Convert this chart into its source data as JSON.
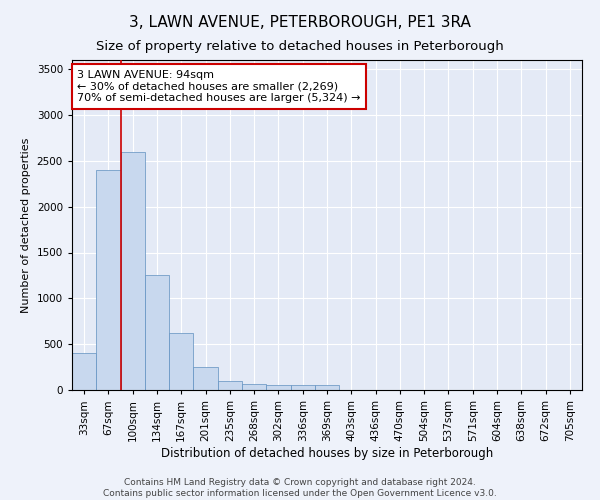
{
  "title": "3, LAWN AVENUE, PETERBOROUGH, PE1 3RA",
  "subtitle": "Size of property relative to detached houses in Peterborough",
  "xlabel": "Distribution of detached houses by size in Peterborough",
  "ylabel": "Number of detached properties",
  "footer_line1": "Contains HM Land Registry data © Crown copyright and database right 2024.",
  "footer_line2": "Contains public sector information licensed under the Open Government Licence v3.0.",
  "categories": [
    "33sqm",
    "67sqm",
    "100sqm",
    "134sqm",
    "167sqm",
    "201sqm",
    "235sqm",
    "268sqm",
    "302sqm",
    "336sqm",
    "369sqm",
    "403sqm",
    "436sqm",
    "470sqm",
    "504sqm",
    "537sqm",
    "571sqm",
    "604sqm",
    "638sqm",
    "672sqm",
    "705sqm"
  ],
  "values": [
    400,
    2400,
    2600,
    1250,
    620,
    250,
    100,
    70,
    60,
    55,
    50,
    0,
    0,
    0,
    0,
    0,
    0,
    0,
    0,
    0,
    0
  ],
  "bar_color": "#c8d8ee",
  "bar_edge_color": "#6090c0",
  "bar_edge_width": 0.5,
  "annotation_text_line1": "3 LAWN AVENUE: 94sqm",
  "annotation_text_line2": "← 30% of detached houses are smaller (2,269)",
  "annotation_text_line3": "70% of semi-detached houses are larger (5,324) →",
  "annotation_box_facecolor": "#ffffff",
  "annotation_box_edgecolor": "#cc0000",
  "redline_x": 1.5,
  "property_line_color": "#cc0000",
  "ylim": [
    0,
    3600
  ],
  "yticks": [
    0,
    500,
    1000,
    1500,
    2000,
    2500,
    3000,
    3500
  ],
  "background_color": "#eef2fa",
  "axes_bg_color": "#e4eaf6",
  "grid_color": "#ffffff",
  "title_fontsize": 11,
  "subtitle_fontsize": 9.5,
  "xlabel_fontsize": 8.5,
  "ylabel_fontsize": 8,
  "tick_fontsize": 7.5,
  "footer_fontsize": 6.5,
  "annotation_fontsize": 8
}
